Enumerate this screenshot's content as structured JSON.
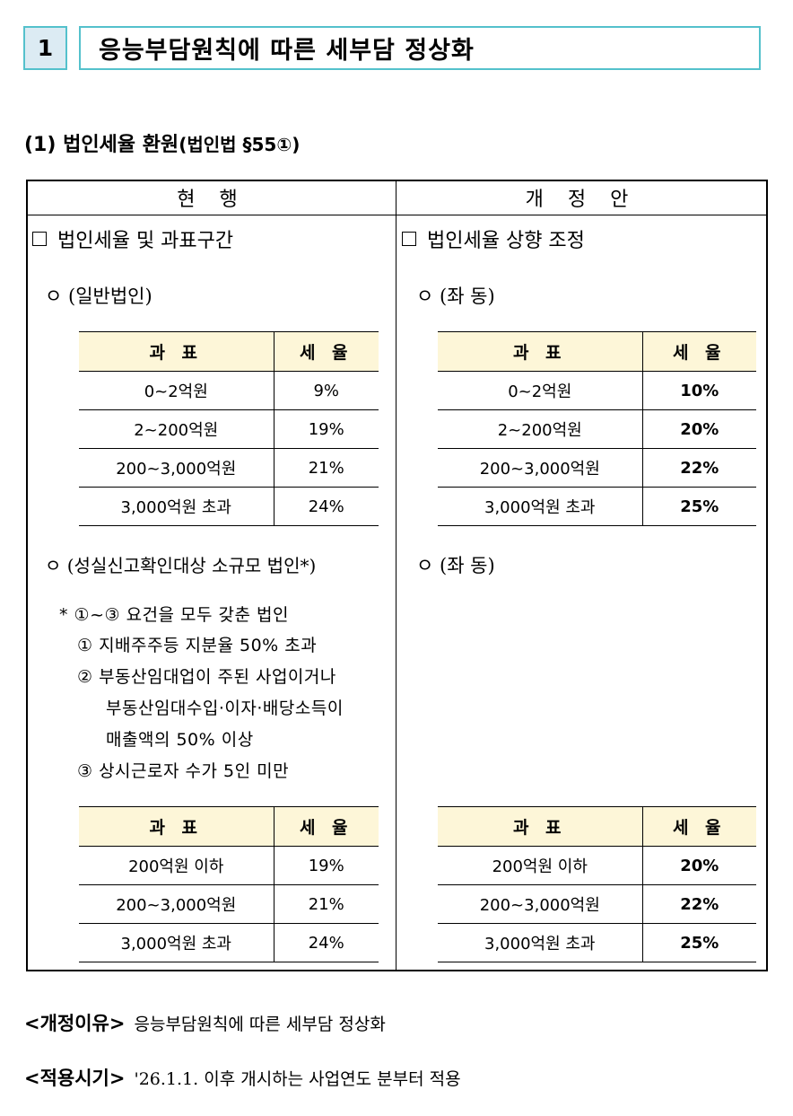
{
  "section": {
    "number": "1",
    "title": "응능부담원칙에 따른 세부담 정상화"
  },
  "subtitle": {
    "main": "(1) 법인세율 환원",
    "ref": "(법인법 §55①)"
  },
  "columns": {
    "current": "현 행",
    "revised": "개 정 안"
  },
  "current": {
    "heading": "법인세율 및 과표구간",
    "general_label": "ㅇ (일반법인)",
    "general_table": {
      "headers": [
        "과 표",
        "세 율"
      ],
      "rows": [
        [
          "0~2억원",
          "9%"
        ],
        [
          "2~200억원",
          "19%"
        ],
        [
          "200~3,000억원",
          "21%"
        ],
        [
          "3,000억원 초과",
          "24%"
        ]
      ]
    },
    "small_label": "ㅇ (성실신고확인대상 소규모 법인*)",
    "note_lines": [
      "* ①~③ 요건을 모두 갖춘 법인",
      "① 지배주주등 지분율 50% 초과",
      "② 부동산임대업이 주된 사업이거나",
      "부동산임대수입·이자·배당소득이",
      "매출액의 50% 이상",
      "③ 상시근로자 수가 5인 미만"
    ],
    "small_table": {
      "headers": [
        "과 표",
        "세 율"
      ],
      "rows": [
        [
          "200억원 이하",
          "19%"
        ],
        [
          "200~3,000억원",
          "21%"
        ],
        [
          "3,000억원 초과",
          "24%"
        ]
      ]
    }
  },
  "revised": {
    "heading": "법인세율 상향 조정",
    "general_label": "ㅇ (좌 동)",
    "general_table": {
      "headers": [
        "과 표",
        "세 율"
      ],
      "rows": [
        [
          "0~2억원",
          "10%"
        ],
        [
          "2~200억원",
          "20%"
        ],
        [
          "200~3,000억원",
          "22%"
        ],
        [
          "3,000억원 초과",
          "25%"
        ]
      ]
    },
    "small_label": "ㅇ (좌 동)",
    "small_table": {
      "headers": [
        "과 표",
        "세 율"
      ],
      "rows": [
        [
          "200억원 이하",
          "20%"
        ],
        [
          "200~3,000억원",
          "22%"
        ],
        [
          "3,000억원 초과",
          "25%"
        ]
      ]
    }
  },
  "footer": {
    "reason_label": "<개정이유>",
    "reason_text": "응능부담원칙에 따른 세부담 정상화",
    "effective_label": "<적용시기>",
    "effective_text": "'26.1.1. 이후 개시하는 사업연도 분부터 적용"
  },
  "colors": {
    "accent_border": "#54c1cc",
    "number_fill": "#dcebf3",
    "table_header_fill": "#fdf6d8"
  }
}
